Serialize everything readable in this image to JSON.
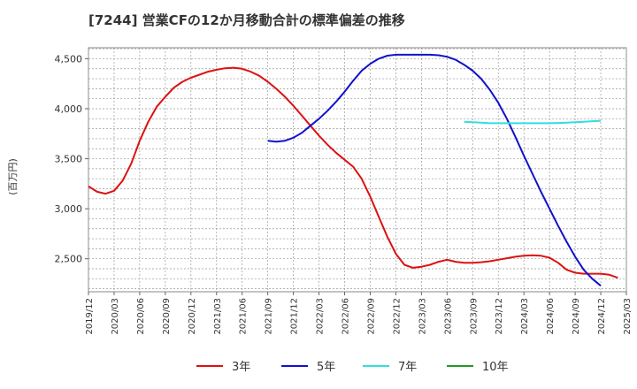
{
  "chart_data": {
    "type": "line",
    "title": "[7244]  営業CFの12か月移動合計の標準偏差の推移",
    "ylabel": "(百万円)",
    "ylim": [
      2170,
      4610
    ],
    "xlim": [
      "2019/12",
      "2025/03"
    ],
    "y_ticks": [
      {
        "value": 2500,
        "label": "2,500"
      },
      {
        "value": 3000,
        "label": "3,000"
      },
      {
        "value": 3500,
        "label": "3,500"
      },
      {
        "value": 4000,
        "label": "4,000"
      },
      {
        "value": 4500,
        "label": "4,500"
      }
    ],
    "x_ticks": [
      "2019/12",
      "2020/03",
      "2020/06",
      "2020/09",
      "2020/12",
      "2021/03",
      "2021/06",
      "2021/09",
      "2021/12",
      "2022/03",
      "2022/06",
      "2022/09",
      "2022/12",
      "2023/03",
      "2023/06",
      "2023/09",
      "2023/12",
      "2024/03",
      "2024/06",
      "2024/09",
      "2024/12",
      "2025/03"
    ],
    "grid": true,
    "legend_position": "bottom",
    "series": [
      {
        "name": "3年",
        "color": "#dd1111",
        "start": "2019/12",
        "values": [
          3225,
          3170,
          3150,
          3180,
          3280,
          3450,
          3680,
          3870,
          4020,
          4120,
          4210,
          4270,
          4310,
          4340,
          4370,
          4390,
          4405,
          4410,
          4400,
          4370,
          4330,
          4270,
          4200,
          4120,
          4030,
          3930,
          3830,
          3730,
          3640,
          3560,
          3490,
          3420,
          3300,
          3120,
          2920,
          2720,
          2550,
          2440,
          2410,
          2420,
          2440,
          2470,
          2490,
          2470,
          2460,
          2460,
          2465,
          2475,
          2490,
          2505,
          2520,
          2530,
          2535,
          2530,
          2510,
          2460,
          2390,
          2360,
          2350,
          2350,
          2350,
          2340,
          2310
        ]
      },
      {
        "name": "5年",
        "color": "#1111cc",
        "start": "2021/09",
        "values": [
          3680,
          3670,
          3680,
          3710,
          3760,
          3830,
          3900,
          3980,
          4070,
          4170,
          4280,
          4380,
          4450,
          4500,
          4530,
          4540,
          4540,
          4540,
          4540,
          4540,
          4535,
          4520,
          4490,
          4440,
          4380,
          4300,
          4190,
          4060,
          3900,
          3720,
          3530,
          3350,
          3170,
          3000,
          2830,
          2670,
          2520,
          2390,
          2300,
          2230
        ]
      },
      {
        "name": "7年",
        "color": "#33dddd",
        "start": "2023/08",
        "values": [
          3870,
          3865,
          3860,
          3855,
          3855,
          3855,
          3855,
          3855,
          3855,
          3855,
          3855,
          3858,
          3860,
          3865,
          3870,
          3875,
          3880
        ]
      },
      {
        "name": "10年",
        "color": "#229922",
        "start": "2019/12",
        "values": []
      }
    ]
  }
}
